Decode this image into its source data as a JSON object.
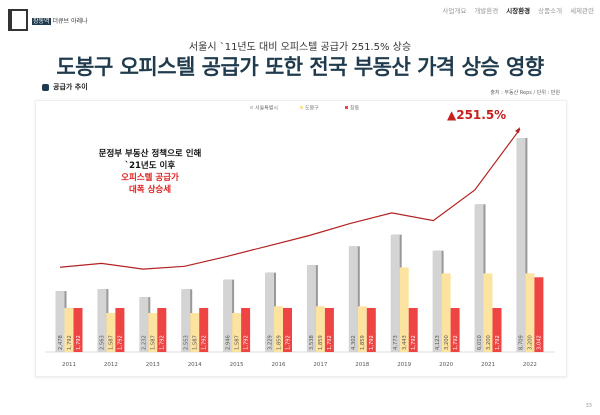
{
  "logo": {
    "badge": "창동역",
    "name": "더큐브 아레나"
  },
  "nav": [
    {
      "label": "사업개요",
      "active": false
    },
    {
      "label": "개발환경",
      "active": false
    },
    {
      "label": "시장환경",
      "active": true
    },
    {
      "label": "상품소개",
      "active": false
    },
    {
      "label": "세제관련",
      "active": false
    }
  ],
  "subtitle": "서울시 `11년도 대비 오피스텔 공급가 251.5% 상승",
  "title": "도봉구 오피스텔 공급가 또한 전국 부동산 가격 상승 영향",
  "section_label": "공급가 추이",
  "source": "출처 : 부동산 Reps / 단위 : 만원",
  "annotation": {
    "line1": "문정부 부동산 정책으로 인해",
    "line2": "`21년도 이후",
    "line3": "오피스텔 공급가",
    "line4": "대폭 상승세"
  },
  "page_number": "33",
  "chart_data": {
    "type": "bar",
    "categories": [
      "2011",
      "2012",
      "2013",
      "2014",
      "2015",
      "2016",
      "2017",
      "2018",
      "2019",
      "2020",
      "2021",
      "2022"
    ],
    "series": [
      {
        "name": "서울특별시",
        "color": "#d4d4d4",
        "values": [
          2478,
          2563,
          2232,
          2553,
          2946,
          3229,
          3538,
          4302,
          4773,
          4123,
          6010,
          8709
        ],
        "labels": [
          "2,478",
          "2,563",
          "2,232",
          "2,553",
          "2,946",
          "3,229",
          "3,538",
          "4,302",
          "4,773",
          "4,123",
          "6,010",
          "8,709"
        ]
      },
      {
        "name": "도봉구",
        "color": "#fde3a0",
        "values": [
          1792,
          1587,
          1587,
          1587,
          1587,
          1859,
          1859,
          1859,
          3443,
          3200,
          3200,
          3200
        ],
        "labels": [
          "1,792",
          "1,587",
          "1,587",
          "1,587",
          "1,587",
          "1,859",
          "1,859",
          "1,859",
          "3,443",
          "3,200",
          "3,200",
          "3,200"
        ]
      },
      {
        "name": "창동",
        "color": "#ee4444",
        "values": [
          1792,
          1792,
          1792,
          1792,
          1792,
          1792,
          1792,
          1792,
          1792,
          1792,
          1792,
          3042
        ],
        "labels": [
          "1,792",
          "1,792",
          "1,792",
          "1,792",
          "1,792",
          "1,792",
          "1,792",
          "1,792",
          "1,792",
          "1,792",
          "1,792",
          "3,042"
        ]
      }
    ],
    "trend_line": {
      "color": "#b22222",
      "values": [
        3620,
        3785,
        3540,
        3660,
        4070,
        4520,
        4970,
        5490,
        5940,
        5610,
        6920,
        9520
      ],
      "annotation": "▲251.5%"
    },
    "legend_position": "top-center",
    "grid": false,
    "ylim": [
      0,
      9600
    ]
  }
}
